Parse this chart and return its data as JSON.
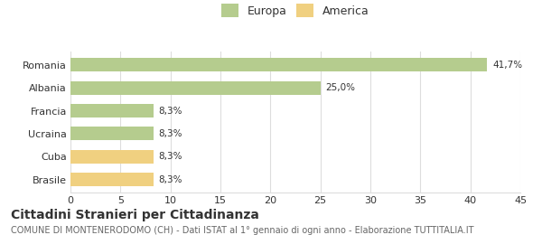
{
  "categories": [
    "Brasile",
    "Cuba",
    "Ucraina",
    "Francia",
    "Albania",
    "Romania"
  ],
  "values": [
    8.3,
    8.3,
    8.3,
    8.3,
    25.0,
    41.7
  ],
  "labels": [
    "8,3%",
    "8,3%",
    "8,3%",
    "8,3%",
    "25,0%",
    "41,7%"
  ],
  "colors": [
    "#f0d080",
    "#f0d080",
    "#b5cc8e",
    "#b5cc8e",
    "#b5cc8e",
    "#b5cc8e"
  ],
  "legend_items": [
    {
      "label": "Europa",
      "color": "#b5cc8e"
    },
    {
      "label": "America",
      "color": "#f0d080"
    }
  ],
  "xlim": [
    0,
    45
  ],
  "xticks": [
    0,
    5,
    10,
    15,
    20,
    25,
    30,
    35,
    40,
    45
  ],
  "title": "Cittadini Stranieri per Cittadinanza",
  "subtitle": "COMUNE DI MONTENERODOMO (CH) - Dati ISTAT al 1° gennaio di ogni anno - Elaborazione TUTTITALIA.IT",
  "background_color": "#ffffff",
  "grid_color": "#dddddd",
  "bar_height": 0.6,
  "title_fontsize": 10,
  "subtitle_fontsize": 7,
  "label_fontsize": 7.5,
  "tick_fontsize": 8,
  "legend_fontsize": 9,
  "ylabel_color": "#666666",
  "text_color": "#333333",
  "subtitle_color": "#666666"
}
